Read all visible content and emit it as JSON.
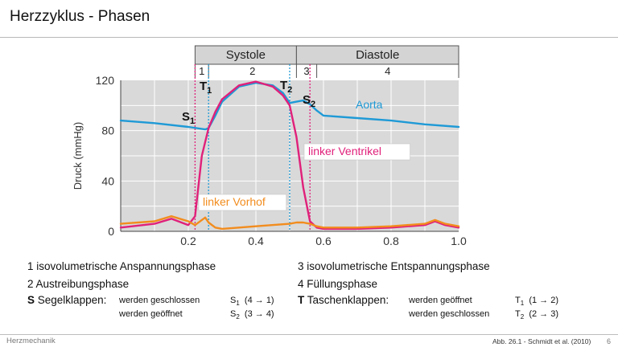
{
  "slide": {
    "title": "Herzzyklus - Phasen",
    "footer_left": "Herzmechanik",
    "citation": "Abb. 26.1 - Schmidt et al. (2010)",
    "page_number": "6"
  },
  "chart_data": {
    "type": "line",
    "title": "",
    "xlabel": "",
    "ylabel": "Druck (mmHg)",
    "xlim": [
      0.0,
      1.0
    ],
    "ylim": [
      0,
      120
    ],
    "x_ticks": [
      "0.2",
      "0.4",
      "0.6",
      "0.8",
      "1.0"
    ],
    "y_ticks": [
      "0",
      "40",
      "80",
      "120"
    ],
    "grid": true,
    "phase_bar": {
      "groups": [
        {
          "label": "Systole",
          "x_start": 0.22,
          "x_end": 0.52
        },
        {
          "label": "Diastole",
          "x_start": 0.52,
          "x_end": 1.0
        }
      ],
      "phases": [
        {
          "label": "1",
          "x_start": 0.22,
          "x_end": 0.26
        },
        {
          "label": "2",
          "x_start": 0.26,
          "x_end": 0.52
        },
        {
          "label": "3",
          "x_start": 0.52,
          "x_end": 0.58
        },
        {
          "label": "4",
          "x_start": 0.58,
          "x_end": 1.0
        }
      ]
    },
    "series": [
      {
        "name": "Aorta",
        "color": "#1f9ad6",
        "x": [
          0.0,
          0.1,
          0.2,
          0.25,
          0.26,
          0.28,
          0.3,
          0.35,
          0.4,
          0.45,
          0.48,
          0.5,
          0.52,
          0.54,
          0.56,
          0.58,
          0.6,
          0.7,
          0.8,
          0.9,
          1.0
        ],
        "y": [
          88,
          86,
          83,
          81,
          82,
          92,
          103,
          115,
          118,
          116,
          110,
          102,
          103,
          104,
          101,
          96,
          92,
          90,
          88,
          85,
          83
        ]
      },
      {
        "name": "linker Ventrikel",
        "color": "#e0207a",
        "x": [
          0.0,
          0.1,
          0.15,
          0.2,
          0.22,
          0.24,
          0.26,
          0.28,
          0.3,
          0.35,
          0.4,
          0.45,
          0.48,
          0.5,
          0.52,
          0.54,
          0.56,
          0.58,
          0.6,
          0.7,
          0.8,
          0.9,
          0.93,
          0.96,
          1.0
        ],
        "y": [
          3,
          6,
          10,
          5,
          12,
          60,
          82,
          95,
          105,
          116,
          119,
          115,
          108,
          100,
          75,
          35,
          8,
          3,
          2,
          2,
          3,
          5,
          8,
          5,
          3
        ]
      },
      {
        "name": "linker Vorhof",
        "color": "#f28c1e",
        "x": [
          0.0,
          0.1,
          0.15,
          0.2,
          0.22,
          0.24,
          0.25,
          0.26,
          0.28,
          0.3,
          0.4,
          0.5,
          0.52,
          0.54,
          0.56,
          0.58,
          0.6,
          0.7,
          0.8,
          0.9,
          0.93,
          0.96,
          1.0
        ],
        "y": [
          6,
          8,
          12,
          8,
          5,
          9,
          11,
          7,
          3,
          2,
          4,
          6,
          7,
          7,
          6,
          4,
          3,
          3,
          4,
          6,
          9,
          6,
          4
        ]
      }
    ],
    "series_labels": [
      {
        "text": "Aorta",
        "color": "#1f9ad6",
        "boxed": false
      },
      {
        "text": "linker Ventrikel",
        "color": "#e0207a",
        "boxed": true
      },
      {
        "text": "linker Vorhof",
        "color": "#f28c1e",
        "boxed": true
      }
    ],
    "markers": [
      {
        "label": "S",
        "sub": "1",
        "x": 0.22,
        "color": "#e0207a"
      },
      {
        "label": "T",
        "sub": "1",
        "x": 0.26,
        "color": "#1f9ad6"
      },
      {
        "label": "T",
        "sub": "2",
        "x": 0.5,
        "color": "#1f9ad6"
      },
      {
        "label": "S",
        "sub": "2",
        "x": 0.56,
        "color": "#e0207a"
      }
    ]
  },
  "legend": {
    "left": [
      {
        "text": "1 isovolumetrische Anspannungsphase"
      },
      {
        "text": "2 Austreibungsphase"
      }
    ],
    "right": [
      {
        "text": "3 isovolumetrische Entspannungsphase"
      },
      {
        "text": "4 Füllungsphase"
      }
    ],
    "segel": {
      "key": "S",
      "name": "Segelklappen:",
      "rows": [
        {
          "action": "werden geschlossen",
          "sym": "S",
          "sub": "1",
          "trans": "(4 → 1)"
        },
        {
          "action": "werden geöffnet",
          "sym": "S",
          "sub": "2",
          "trans": "(3 → 4)"
        }
      ]
    },
    "taschen": {
      "key": "T",
      "name": "Taschenklappen:",
      "rows": [
        {
          "action": "werden geöffnet",
          "sym": "T",
          "sub": "1",
          "trans": "(1 → 2)"
        },
        {
          "action": "werden geschlossen",
          "sym": "T",
          "sub": "2",
          "trans": "(2 → 3)"
        }
      ]
    }
  }
}
